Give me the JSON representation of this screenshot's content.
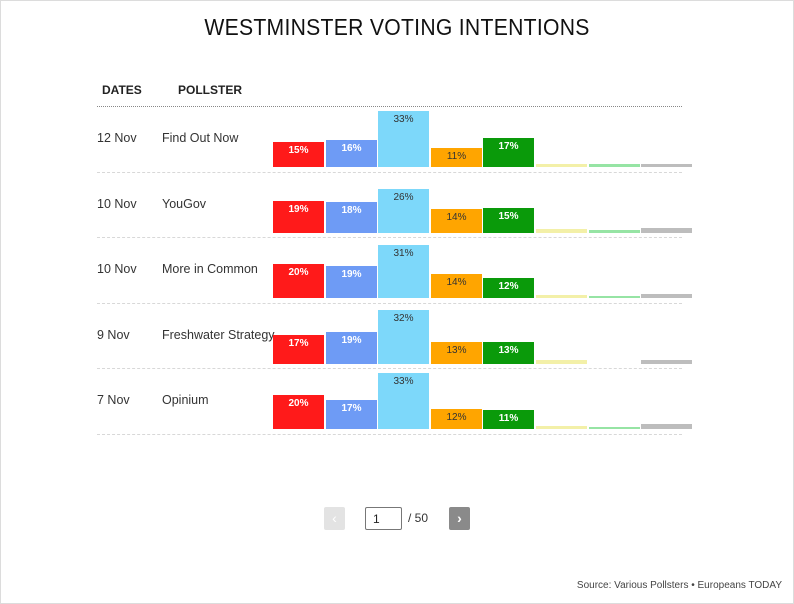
{
  "title": "WESTMINSTER VOTING INTENTIONS",
  "table": {
    "col_dates": "DATES",
    "col_pollster": "POLLSTER"
  },
  "colors": [
    "#ff1a1a",
    "#6e9bf5",
    "#7dd8fa",
    "#ffa500",
    "#0a9a0a",
    "#f3f0a8",
    "#96e4a4",
    "#bdbdbd"
  ],
  "dark_label_parties": [
    2,
    3
  ],
  "chart_data": {
    "type": "bar",
    "xlabel": "",
    "ylabel": "",
    "ylim": [
      0,
      35
    ],
    "grid": false,
    "legend": "none",
    "rows": [
      {
        "date": "12 Nov",
        "pollster": "Find Out Now",
        "values": [
          15,
          16,
          33,
          11,
          17,
          2,
          1.5,
          2
        ],
        "labels": [
          "15%",
          "16%",
          "33%",
          "11%",
          "17%",
          "",
          "",
          ""
        ]
      },
      {
        "date": "10 Nov",
        "pollster": "YouGov",
        "values": [
          19,
          18,
          26,
          14,
          15,
          2.5,
          2,
          3
        ],
        "labels": [
          "19%",
          "18%",
          "26%",
          "14%",
          "15%",
          "",
          "",
          ""
        ]
      },
      {
        "date": "10 Nov",
        "pollster": "More in Common",
        "values": [
          20,
          19,
          31,
          14,
          12,
          1.5,
          1,
          2.5
        ],
        "labels": [
          "20%",
          "19%",
          "31%",
          "14%",
          "12%",
          "",
          "",
          ""
        ]
      },
      {
        "date": "9 Nov",
        "pollster": "Freshwater Strategy",
        "values": [
          17,
          19,
          32,
          13,
          13,
          2.5,
          0,
          2.5
        ],
        "labels": [
          "17%",
          "19%",
          "32%",
          "13%",
          "13%",
          "",
          "",
          ""
        ]
      },
      {
        "date": "7 Nov",
        "pollster": "Opinium",
        "values": [
          20,
          17,
          33,
          12,
          11,
          2,
          1,
          3
        ],
        "labels": [
          "20%",
          "17%",
          "33%",
          "12%",
          "11%",
          "",
          "",
          ""
        ]
      }
    ]
  },
  "pagination": {
    "prev_label": "‹",
    "next_label": "›",
    "current_page": "1",
    "total_label": "/ 50"
  },
  "source": "Source: Various Pollsters • Europeans TODAY"
}
